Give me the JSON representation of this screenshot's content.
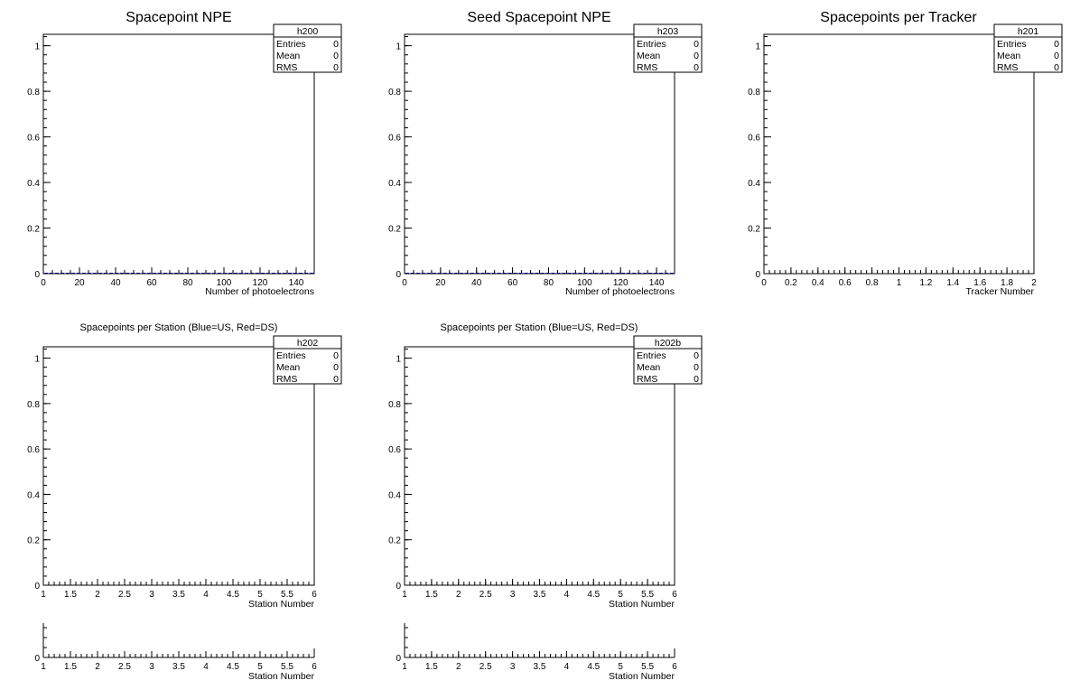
{
  "chart_data": [
    {
      "type": "bar",
      "title": "Spacepoint NPE",
      "xlabel": "Number of photoelectrons",
      "ylabel": "",
      "xlim": [
        0,
        150
      ],
      "ylim": [
        0,
        1.05
      ],
      "xticks": [
        "0",
        "20",
        "40",
        "60",
        "80",
        "100",
        "120",
        "140"
      ],
      "yticks": [
        "0",
        "0.2",
        "0.4",
        "0.6",
        "0.8",
        "1"
      ],
      "bins": 50,
      "values": [],
      "fill_color": "#00007f",
      "stats": {
        "name": "h200",
        "Entries": "0",
        "Mean": "0",
        "RMS": "0"
      }
    },
    {
      "type": "bar",
      "title": "Seed Spacepoint NPE",
      "xlabel": "Number of photoelectrons",
      "ylabel": "",
      "xlim": [
        0,
        150
      ],
      "ylim": [
        0,
        1.05
      ],
      "xticks": [
        "0",
        "20",
        "40",
        "60",
        "80",
        "100",
        "120",
        "140"
      ],
      "yticks": [
        "0",
        "0.2",
        "0.4",
        "0.6",
        "0.8",
        "1"
      ],
      "bins": 50,
      "values": [],
      "fill_color": "#00007f",
      "stats": {
        "name": "h203",
        "Entries": "0",
        "Mean": "0",
        "RMS": "0"
      }
    },
    {
      "type": "bar",
      "title": "Spacepoints per Tracker",
      "xlabel": "Tracker Number",
      "ylabel": "",
      "xlim": [
        0,
        2
      ],
      "ylim": [
        0,
        1.05
      ],
      "xticks": [
        "0",
        "0.2",
        "0.4",
        "0.6",
        "0.8",
        "1",
        "1.2",
        "1.4",
        "1.6",
        "1.8",
        "2"
      ],
      "yticks": [
        "0",
        "0.2",
        "0.4",
        "0.6",
        "0.8",
        "1"
      ],
      "values": [],
      "stats": {
        "name": "h201",
        "Entries": "0",
        "Mean": "0",
        "RMS": "0"
      }
    },
    {
      "type": "bar",
      "title": "Spacepoints per Station (Blue=US, Red=DS)",
      "xlabel": "Station Number",
      "ylabel": "",
      "xlim": [
        1,
        6
      ],
      "ylim": [
        0,
        1.05
      ],
      "xticks": [
        "1",
        "1.5",
        "2",
        "2.5",
        "3",
        "3.5",
        "4",
        "4.5",
        "5",
        "5.5",
        "6"
      ],
      "yticks": [
        "0",
        "0.2",
        "0.4",
        "0.6",
        "0.8",
        "1"
      ],
      "values": [],
      "stats": {
        "name": "h202",
        "Entries": "0",
        "Mean": "0",
        "RMS": "0"
      }
    },
    {
      "type": "bar",
      "title": "Spacepoints per Station (Blue=US, Red=DS)",
      "xlabel": "Station Number",
      "ylabel": "",
      "xlim": [
        1,
        6
      ],
      "ylim": [
        0,
        1.05
      ],
      "xticks": [
        "1",
        "1.5",
        "2",
        "2.5",
        "3",
        "3.5",
        "4",
        "4.5",
        "5",
        "5.5",
        "6"
      ],
      "yticks": [
        "0",
        "0.2",
        "0.4",
        "0.6",
        "0.8",
        "1"
      ],
      "values": [],
      "stats": {
        "name": "h202b",
        "Entries": "0",
        "Mean": "0",
        "RMS": "0"
      }
    },
    {
      "type": "bar",
      "title": "",
      "xlabel": "Station Number",
      "ylabel": "",
      "xlim": [
        1,
        6
      ],
      "xticks": [
        "1",
        "1.5",
        "2",
        "2.5",
        "3",
        "3.5",
        "4",
        "4.5",
        "5",
        "5.5",
        "6"
      ],
      "yticks": [
        "0"
      ],
      "values": []
    },
    {
      "type": "bar",
      "title": "",
      "xlabel": "Station Number",
      "ylabel": "",
      "xlim": [
        1,
        6
      ],
      "xticks": [
        "1",
        "1.5",
        "2",
        "2.5",
        "3",
        "3.5",
        "4",
        "4.5",
        "5",
        "5.5",
        "6"
      ],
      "yticks": [
        "0"
      ],
      "values": []
    }
  ]
}
